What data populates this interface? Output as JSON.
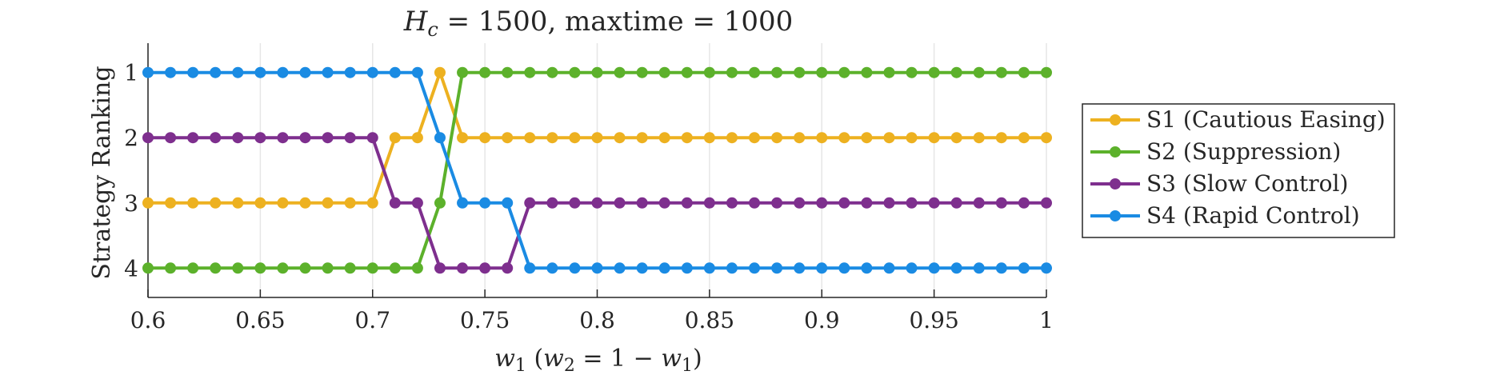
{
  "chart_data": {
    "type": "line",
    "title": "H_c = 1500, maxtime = 1000",
    "title_parts": {
      "h": "H",
      "sub": "c",
      "rest": " = 1500, maxtime = 1000"
    },
    "xlabel": "w1 (w2 = 1 − w1)",
    "xlabel_parts": {
      "w1": "w",
      "w1_sub": "1",
      "open": " (",
      "w2": "w",
      "w2_sub": "2",
      "mid": " = 1 − ",
      "w1b": "w",
      "w1b_sub": "1",
      "close": ")"
    },
    "ylabel": "Strategy Ranking",
    "xlim": [
      0.6,
      1.0
    ],
    "ylim": [
      0.55,
      4.45
    ],
    "y_reversed": true,
    "grid": "vertical",
    "legend_position": "right-outside",
    "xticks": [
      0.6,
      0.65,
      0.7,
      0.75,
      0.8,
      0.85,
      0.9,
      0.95,
      1.0
    ],
    "xtick_labels": [
      "0.6",
      "0.65",
      "0.7",
      "0.75",
      "0.8",
      "0.85",
      "0.9",
      "0.95",
      "1"
    ],
    "yticks": [
      1,
      2,
      3,
      4
    ],
    "ytick_labels": [
      "1",
      "2",
      "3",
      "4"
    ],
    "x": [
      0.6,
      0.61,
      0.62,
      0.63,
      0.64,
      0.65,
      0.66,
      0.67,
      0.68,
      0.69,
      0.7,
      0.71,
      0.72,
      0.73,
      0.74,
      0.75,
      0.76,
      0.77,
      0.78,
      0.79,
      0.8,
      0.81,
      0.82,
      0.83,
      0.84,
      0.85,
      0.86,
      0.87,
      0.88,
      0.89,
      0.9,
      0.91,
      0.92,
      0.93,
      0.94,
      0.95,
      0.96,
      0.97,
      0.98,
      0.99,
      1.0
    ],
    "series": [
      {
        "name": "S1 (Cautious Easing)",
        "color": "#EDB120",
        "values": [
          3,
          3,
          3,
          3,
          3,
          3,
          3,
          3,
          3,
          3,
          3,
          2,
          2,
          1,
          2,
          2,
          2,
          2,
          2,
          2,
          2,
          2,
          2,
          2,
          2,
          2,
          2,
          2,
          2,
          2,
          2,
          2,
          2,
          2,
          2,
          2,
          2,
          2,
          2,
          2,
          2
        ]
      },
      {
        "name": "S2 (Suppression)",
        "color": "#5CB12B",
        "values": [
          4,
          4,
          4,
          4,
          4,
          4,
          4,
          4,
          4,
          4,
          4,
          4,
          4,
          3,
          1,
          1,
          1,
          1,
          1,
          1,
          1,
          1,
          1,
          1,
          1,
          1,
          1,
          1,
          1,
          1,
          1,
          1,
          1,
          1,
          1,
          1,
          1,
          1,
          1,
          1,
          1
        ]
      },
      {
        "name": "S3 (Slow Control)",
        "color": "#7E2F8E",
        "values": [
          2,
          2,
          2,
          2,
          2,
          2,
          2,
          2,
          2,
          2,
          2,
          3,
          3,
          4,
          4,
          4,
          4,
          3,
          3,
          3,
          3,
          3,
          3,
          3,
          3,
          3,
          3,
          3,
          3,
          3,
          3,
          3,
          3,
          3,
          3,
          3,
          3,
          3,
          3,
          3,
          3
        ]
      },
      {
        "name": "S4 (Rapid Control)",
        "color": "#1A8BE3",
        "values": [
          1,
          1,
          1,
          1,
          1,
          1,
          1,
          1,
          1,
          1,
          1,
          1,
          1,
          2,
          3,
          3,
          3,
          4,
          4,
          4,
          4,
          4,
          4,
          4,
          4,
          4,
          4,
          4,
          4,
          4,
          4,
          4,
          4,
          4,
          4,
          4,
          4,
          4,
          4,
          4,
          4
        ]
      }
    ]
  }
}
